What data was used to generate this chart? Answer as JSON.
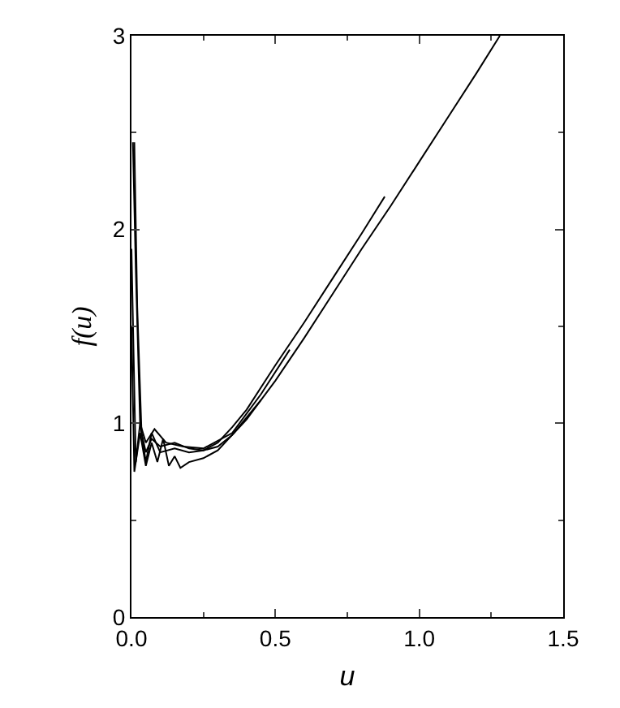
{
  "chart_data": {
    "type": "line",
    "xlabel": "u",
    "ylabel": "f(u)",
    "xlim": [
      0,
      1.5
    ],
    "ylim": [
      0,
      3
    ],
    "xticks": [
      {
        "value": 0,
        "label": "0.0"
      },
      {
        "value": 0.5,
        "label": "0.5"
      },
      {
        "value": 1,
        "label": "1.0"
      },
      {
        "value": 1.5,
        "label": "1.5"
      }
    ],
    "yticks": [
      0,
      1,
      2,
      3
    ],
    "grid": false,
    "marker": "none",
    "line_style": "solid",
    "series": [
      {
        "color": "#000000",
        "x": [
          0.01,
          0.02,
          0.035,
          0.05,
          0.07,
          0.1,
          0.15,
          0.2,
          0.25,
          0.3,
          0.35,
          0.4,
          0.5,
          0.6,
          0.7,
          0.8,
          0.9,
          1.0,
          1.1,
          1.2,
          1.28
        ],
        "values": [
          2.45,
          1.6,
          0.95,
          0.85,
          0.92,
          0.88,
          0.9,
          0.87,
          0.86,
          0.88,
          0.94,
          1.02,
          1.22,
          1.44,
          1.67,
          1.9,
          2.12,
          2.35,
          2.58,
          2.81,
          3.0
        ]
      },
      {
        "color": "#000000",
        "x": [
          0.005,
          0.015,
          0.03,
          0.05,
          0.07,
          0.1,
          0.15,
          0.2,
          0.25,
          0.3,
          0.35,
          0.4,
          0.5,
          0.6,
          0.7,
          0.8,
          0.88
        ],
        "values": [
          2.45,
          1.8,
          1.0,
          0.8,
          0.95,
          0.85,
          0.87,
          0.85,
          0.86,
          0.9,
          0.98,
          1.07,
          1.3,
          1.52,
          1.75,
          1.98,
          2.17
        ]
      },
      {
        "color": "#000000",
        "x": [
          0.0,
          0.01,
          0.03,
          0.05,
          0.07,
          0.09,
          0.11,
          0.13,
          0.15,
          0.17,
          0.2,
          0.25,
          0.3,
          0.35,
          0.4,
          0.45
        ],
        "values": [
          1.5,
          0.75,
          0.95,
          0.78,
          0.9,
          0.8,
          0.92,
          0.78,
          0.83,
          0.77,
          0.8,
          0.82,
          0.86,
          0.94,
          1.03,
          1.12
        ]
      },
      {
        "color": "#000000",
        "x": [
          0.0,
          0.015,
          0.03,
          0.05,
          0.08,
          0.12,
          0.18,
          0.25,
          0.35,
          0.45,
          0.55
        ],
        "values": [
          1.9,
          0.8,
          1.0,
          0.9,
          0.97,
          0.9,
          0.88,
          0.87,
          0.95,
          1.15,
          1.38
        ]
      }
    ]
  }
}
